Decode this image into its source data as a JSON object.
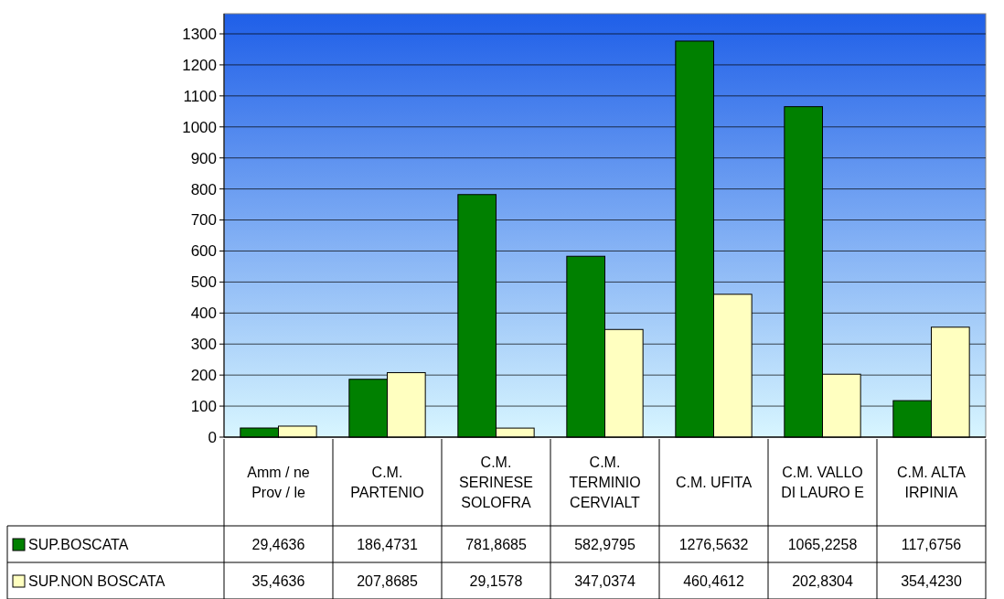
{
  "chart_data": {
    "type": "bar",
    "categories": [
      "Amm / ne Prov / le",
      "C.M. PARTENIO",
      "C.M. SERINESE SOLOFRA",
      "C.M. TERMINIO CERVIALT",
      "C.M. UFITA",
      "C.M. VALLO DI LAURO E",
      "C.M. ALTA IRPINIA"
    ],
    "series": [
      {
        "name": "SUP.BOSCATA",
        "color": "#008000",
        "values": [
          29.4636,
          186.4731,
          781.8685,
          582.9795,
          1276.5632,
          1065.2258,
          117.6756
        ],
        "value_labels": [
          "29,4636",
          "186,4731",
          "781,8685",
          "582,9795",
          "1276,5632",
          "1065,2258",
          "117,6756"
        ]
      },
      {
        "name": "SUP.NON BOSCATA",
        "color": "#ffffc0",
        "values": [
          35.4636,
          207.8685,
          29.1578,
          347.0374,
          460.4612,
          202.8304,
          354.423
        ],
        "value_labels": [
          "35,4636",
          "207,8685",
          "29,1578",
          "347,0374",
          "460,4612",
          "202,8304",
          "354,4230"
        ]
      }
    ],
    "ylim": [
      0,
      1300
    ],
    "yticks": [
      0,
      100,
      200,
      300,
      400,
      500,
      600,
      700,
      800,
      900,
      1000,
      1100,
      1200,
      1300
    ],
    "grid": "y",
    "legend": "bottom left"
  }
}
